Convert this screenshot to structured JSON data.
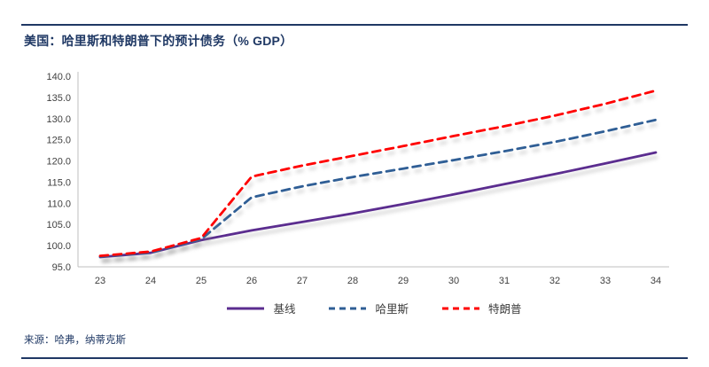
{
  "page": {
    "title": "美国：哈里斯和特朗普下的预计债务（% GDP）",
    "source": "来源：哈弗，纳蒂克斯"
  },
  "colors": {
    "rule": "#1F3864",
    "title_text": "#1F3864",
    "source_text": "#1F3864",
    "axis_line": "#BFBFBF",
    "tick_text": "#404040",
    "line_shadow": "#8A8A8A"
  },
  "chart_data": {
    "type": "line",
    "title": "美国：哈里斯和特朗普下的预计债务（% GDP）",
    "xlabel": "",
    "ylabel": "",
    "x": [
      23,
      24,
      25,
      26,
      27,
      28,
      29,
      30,
      31,
      32,
      33,
      34
    ],
    "ylim": [
      95,
      140
    ],
    "ytick_step": 5,
    "ytick_decimals": 1,
    "grid": false,
    "legend_position": "bottom",
    "series": [
      {
        "key": "baseline",
        "name": "基线",
        "color": "#5B2D8F",
        "style": "solid",
        "values": [
          97.3,
          98.3,
          101.3,
          103.6,
          105.6,
          107.6,
          109.8,
          112.1,
          114.5,
          116.9,
          119.4,
          122.0
        ]
      },
      {
        "key": "harris",
        "name": "哈里斯",
        "color": "#2F5E95",
        "style": "dashed",
        "values": [
          97.4,
          98.4,
          101.5,
          111.4,
          114.0,
          116.2,
          118.2,
          120.2,
          122.3,
          124.5,
          127.0,
          129.7
        ]
      },
      {
        "key": "trump",
        "name": "特朗普",
        "color": "#FF0000",
        "style": "dashed",
        "values": [
          97.6,
          98.6,
          101.8,
          116.3,
          118.9,
          121.2,
          123.5,
          125.9,
          128.2,
          130.7,
          133.5,
          136.6
        ]
      }
    ]
  }
}
